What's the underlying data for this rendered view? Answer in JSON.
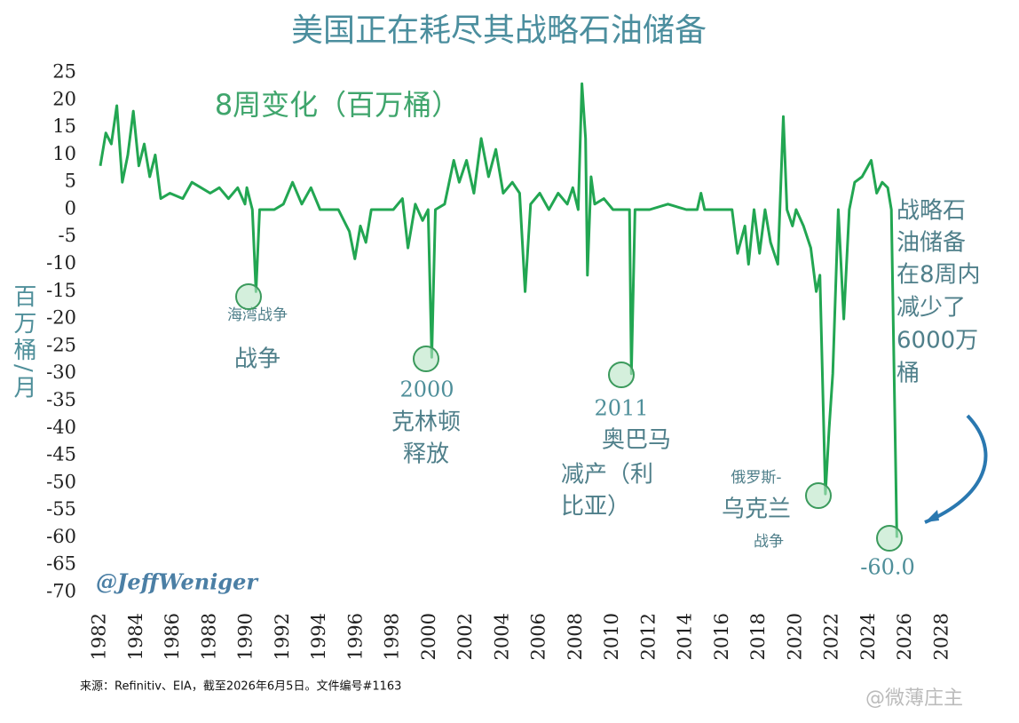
{
  "chart_data": {
    "type": "line",
    "title": "美国正在耗尽其战略石油储备",
    "subtitle": "8周变化（百万桶）",
    "y_label": "百万桶/月",
    "source": "来源：Refinitiv、EIA，截至2026年6月5日。文件编号#1163",
    "handle": "@JeffWeniger",
    "watermark": "@微薄庄主",
    "annotations": {
      "gulf_small": "海湾战争",
      "gulf": "战争",
      "y2000": "2000",
      "clinton": [
        "克林顿",
        "释放"
      ],
      "y2011": "2011",
      "obama": [
        "奥巴马",
        "减产（利",
        "比亚）"
      ],
      "russia": [
        "俄罗斯-",
        "乌克兰",
        "战争"
      ],
      "spr": [
        "战略石",
        "油储备",
        "在8周内",
        "减少了",
        "6000万",
        "桶"
      ],
      "last": "-60.0"
    },
    "color": "#22a652",
    "x": [
      1982.0,
      1982.3,
      1982.6,
      1982.9,
      1983.2,
      1983.5,
      1983.8,
      1984.1,
      1984.4,
      1984.7,
      1985.0,
      1985.3,
      1985.8,
      1986.5,
      1987.0,
      1987.5,
      1988.0,
      1988.5,
      1989.0,
      1989.5,
      1989.9,
      1990.0,
      1990.3,
      1990.5,
      1990.7,
      1991.5,
      1992.0,
      1992.5,
      1993.0,
      1993.5,
      1994.0,
      1995.0,
      1995.6,
      1995.9,
      1996.2,
      1996.5,
      1996.8,
      1998.0,
      1998.5,
      1998.8,
      1999.2,
      1999.6,
      1999.9,
      2000.1,
      2000.3,
      2000.8,
      2001.3,
      2001.6,
      2002.0,
      2002.4,
      2002.8,
      2003.2,
      2003.6,
      2004.0,
      2004.5,
      2004.9,
      2005.2,
      2005.5,
      2006.0,
      2006.5,
      2007.0,
      2007.5,
      2007.8,
      2008.1,
      2008.3,
      2008.5,
      2008.6,
      2008.8,
      2009.0,
      2009.5,
      2010.0,
      2010.9,
      2011.0,
      2011.2,
      2012.0,
      2013.0,
      2014.0,
      2014.6,
      2014.8,
      2015.0,
      2016.5,
      2016.8,
      2017.2,
      2017.4,
      2017.7,
      2018.0,
      2018.3,
      2018.6,
      2019.0,
      2019.3,
      2019.5,
      2019.8,
      2020.0,
      2020.4,
      2020.8,
      2021.1,
      2021.3,
      2021.6,
      2021.8,
      2022.0,
      2022.3,
      2022.6,
      2022.9,
      2023.2,
      2023.6,
      2024.1,
      2024.4,
      2024.7,
      2025.0,
      2025.2,
      2025.5
    ],
    "values": [
      8,
      14,
      12,
      19,
      5,
      10,
      18,
      8,
      12,
      6,
      10,
      2,
      3,
      2,
      5,
      4,
      3,
      4,
      2,
      4,
      1,
      4,
      0,
      -15,
      0,
      0,
      1,
      5,
      1,
      4,
      0,
      0,
      -4,
      -9,
      -3,
      -6,
      0,
      0,
      2,
      -7,
      1,
      -2,
      0,
      -27,
      0,
      1,
      9,
      5,
      9,
      3,
      13,
      6,
      11,
      3,
      5,
      3,
      -15,
      1,
      3,
      0,
      3,
      1,
      4,
      0,
      23,
      13,
      -12,
      6,
      1,
      2,
      0,
      0,
      -30,
      0,
      0,
      1,
      0,
      0,
      3,
      0,
      0,
      -8,
      -3,
      -10,
      0,
      -8,
      0,
      -6,
      -10,
      17,
      0,
      -3,
      0,
      -3,
      -7,
      -15,
      -12,
      -52,
      -40,
      -30,
      0,
      -20,
      0,
      5,
      6,
      9,
      3,
      5,
      4,
      0,
      -60
    ],
    "xlim": [
      1981.3,
      2028.7
    ],
    "ylim": [
      -72,
      27
    ],
    "xticks": [
      1982,
      1984,
      1986,
      1988,
      1990,
      1992,
      1994,
      1996,
      1998,
      2000,
      2002,
      2004,
      2006,
      2008,
      2010,
      2012,
      2014,
      2016,
      2018,
      2020,
      2022,
      2024,
      2026,
      2028
    ],
    "yticks": [
      25,
      20,
      15,
      10,
      5,
      0,
      -5,
      -10,
      -15,
      -20,
      -25,
      -30,
      -35,
      -40,
      -45,
      -50,
      -55,
      -60,
      -65,
      -70
    ]
  }
}
